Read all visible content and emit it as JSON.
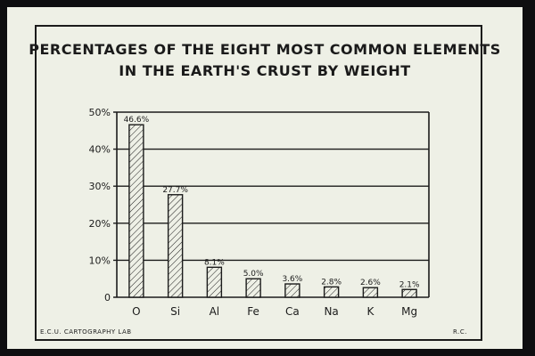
{
  "title": {
    "line1": "PERCENTAGES OF THE EIGHT MOST COMMON ELEMENTS",
    "line2": "IN THE EARTH'S CRUST BY WEIGHT"
  },
  "footer": {
    "left": "E.C.U.  CARTOGRAPHY  LAB",
    "right": "R.C."
  },
  "colors": {
    "background": "#eef0e6",
    "ink": "#1b1b1b"
  },
  "chart_data": {
    "type": "bar",
    "title": "PERCENTAGES OF THE EIGHT MOST COMMON ELEMENTS IN THE EARTH'S CRUST BY WEIGHT",
    "categories": [
      "O",
      "Si",
      "Al",
      "Fe",
      "Ca",
      "Na",
      "K",
      "Mg"
    ],
    "values": [
      46.6,
      27.7,
      8.1,
      5.0,
      3.6,
      2.8,
      2.6,
      2.1
    ],
    "data_labels": [
      "46.6%",
      "27.7%",
      "8.1%",
      "5.0%",
      "3.6%",
      "2.8%",
      "2.6%",
      "2.1%"
    ],
    "yticks": [
      0,
      10,
      20,
      30,
      40,
      50
    ],
    "ytick_labels": [
      "0",
      "10%",
      "20%",
      "30%",
      "40%",
      "50%"
    ],
    "ylim": [
      0,
      50
    ],
    "xlabel": "",
    "ylabel": "",
    "grid": true,
    "bar_fill": "diagonal hatch"
  }
}
